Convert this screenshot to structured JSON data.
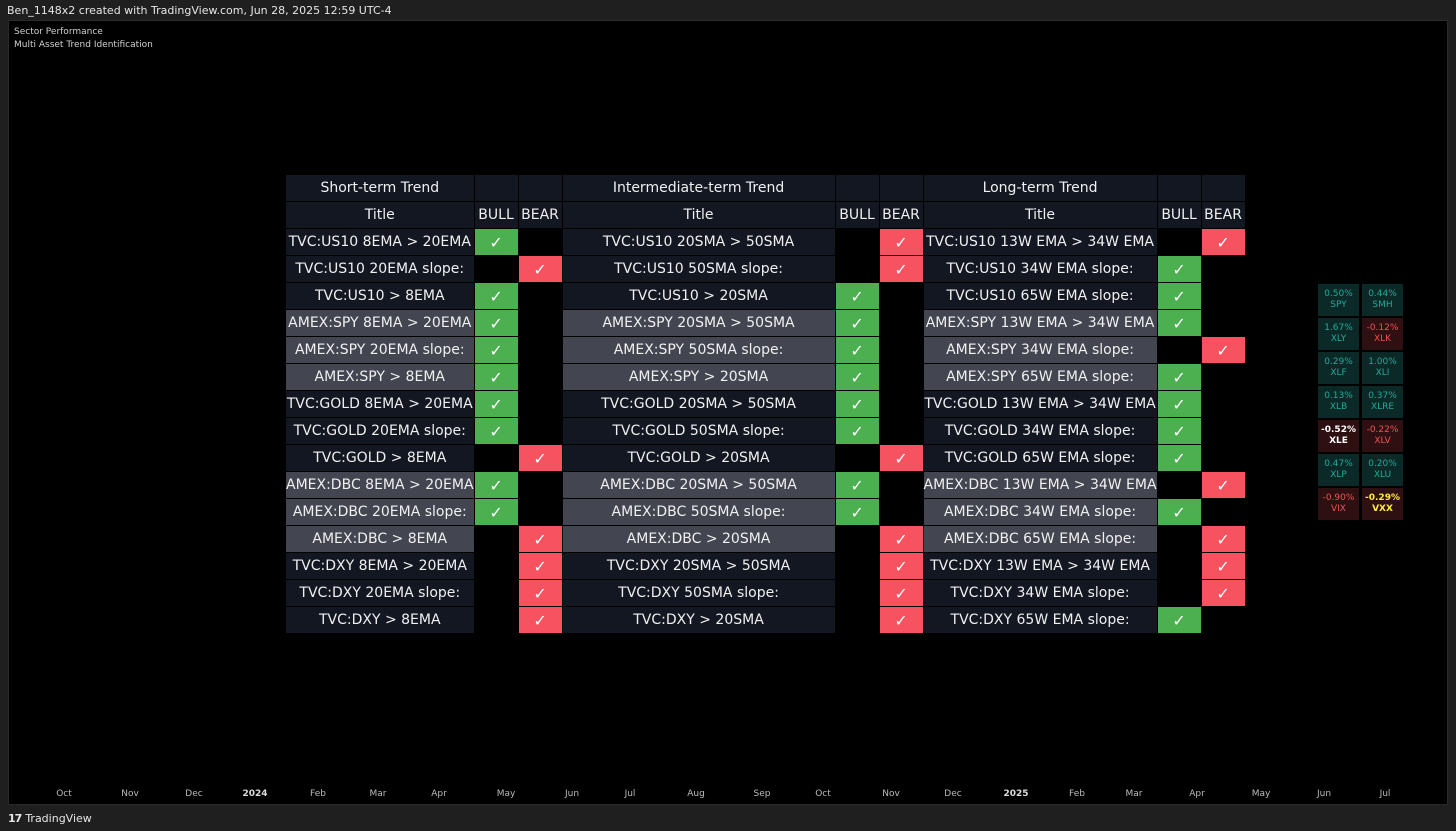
{
  "header": {
    "text": "Ben_1148x2 created with TradingView.com, Jun 28, 2025 12:59 UTC-4"
  },
  "indicators": [
    "Sector Performance",
    "Multi Asset Trend Identification"
  ],
  "table": {
    "sections": [
      "Short-term Trend",
      "Intermediate-term Trend",
      "Long-term Trend"
    ],
    "col_title": "Title",
    "col_bull": "BULL",
    "col_bear": "BEAR",
    "check": "✓",
    "rows": [
      {
        "a": "TVC:US10 8EMA > 20EMA",
        "b": "TVC:US10 20SMA > 50SMA",
        "c": "TVC:US10 13W EMA > 34W EMA",
        "s": [
          "bull",
          "bear",
          "bear"
        ],
        "alt": false
      },
      {
        "a": "TVC:US10 20EMA slope:",
        "b": "TVC:US10 50SMA slope:",
        "c": "TVC:US10 34W EMA slope:",
        "s": [
          "bear",
          "bear",
          "bull"
        ],
        "alt": false
      },
      {
        "a": "TVC:US10 > 8EMA",
        "b": "TVC:US10 > 20SMA",
        "c": "TVC:US10 65W EMA slope:",
        "s": [
          "bull",
          "bull",
          "bull"
        ],
        "alt": false
      },
      {
        "a": "AMEX:SPY 8EMA > 20EMA",
        "b": "AMEX:SPY 20SMA > 50SMA",
        "c": "AMEX:SPY 13W EMA > 34W EMA",
        "s": [
          "bull",
          "bull",
          "bull"
        ],
        "alt": true
      },
      {
        "a": "AMEX:SPY 20EMA slope:",
        "b": "AMEX:SPY 50SMA slope:",
        "c": "AMEX:SPY 34W EMA slope:",
        "s": [
          "bull",
          "bull",
          "bear"
        ],
        "alt": true
      },
      {
        "a": "AMEX:SPY > 8EMA",
        "b": "AMEX:SPY > 20SMA",
        "c": "AMEX:SPY 65W EMA slope:",
        "s": [
          "bull",
          "bull",
          "bull"
        ],
        "alt": true
      },
      {
        "a": "TVC:GOLD 8EMA > 20EMA",
        "b": "TVC:GOLD 20SMA > 50SMA",
        "c": "TVC:GOLD 13W EMA > 34W EMA",
        "s": [
          "bull",
          "bull",
          "bull"
        ],
        "alt": false
      },
      {
        "a": "TVC:GOLD 20EMA slope:",
        "b": "TVC:GOLD 50SMA slope:",
        "c": "TVC:GOLD 34W EMA slope:",
        "s": [
          "bull",
          "bull",
          "bull"
        ],
        "alt": false
      },
      {
        "a": "TVC:GOLD > 8EMA",
        "b": "TVC:GOLD > 20SMA",
        "c": "TVC:GOLD 65W EMA slope:",
        "s": [
          "bear",
          "bear",
          "bull"
        ],
        "alt": false
      },
      {
        "a": "AMEX:DBC 8EMA > 20EMA",
        "b": "AMEX:DBC 20SMA > 50SMA",
        "c": "AMEX:DBC 13W EMA > 34W EMA",
        "s": [
          "bull",
          "bull",
          "bear"
        ],
        "alt": true
      },
      {
        "a": "AMEX:DBC 20EMA slope:",
        "b": "AMEX:DBC 50SMA slope:",
        "c": "AMEX:DBC 34W EMA slope:",
        "s": [
          "bull",
          "bull",
          "bull"
        ],
        "alt": true
      },
      {
        "a": "AMEX:DBC > 8EMA",
        "b": "AMEX:DBC > 20SMA",
        "c": "AMEX:DBC 65W EMA slope:",
        "s": [
          "bear",
          "bear",
          "bear"
        ],
        "alt": true
      },
      {
        "a": "TVC:DXY 8EMA > 20EMA",
        "b": "TVC:DXY 20SMA > 50SMA",
        "c": "TVC:DXY 13W EMA > 34W EMA",
        "s": [
          "bear",
          "bear",
          "bear"
        ],
        "alt": false
      },
      {
        "a": "TVC:DXY 20EMA slope:",
        "b": "TVC:DXY 50SMA slope:",
        "c": "TVC:DXY 34W EMA slope:",
        "s": [
          "bear",
          "bear",
          "bear"
        ],
        "alt": false
      },
      {
        "a": "TVC:DXY > 8EMA",
        "b": "TVC:DXY > 20SMA",
        "c": "TVC:DXY 65W EMA slope:",
        "s": [
          "bear",
          "bear",
          "bull"
        ],
        "alt": false
      }
    ]
  },
  "sectors": [
    {
      "pct": "0.50%",
      "sym": "SPY",
      "tone": "pos"
    },
    {
      "pct": "0.44%",
      "sym": "SMH",
      "tone": "pos"
    },
    {
      "pct": "1.67%",
      "sym": "XLY",
      "tone": "pos"
    },
    {
      "pct": "-0.12%",
      "sym": "XLK",
      "tone": "neg"
    },
    {
      "pct": "0.29%",
      "sym": "XLF",
      "tone": "pos"
    },
    {
      "pct": "1.00%",
      "sym": "XLI",
      "tone": "pos"
    },
    {
      "pct": "0.13%",
      "sym": "XLB",
      "tone": "pos"
    },
    {
      "pct": "0.37%",
      "sym": "XLRE",
      "tone": "pos"
    },
    {
      "pct": "-0.52%",
      "sym": "XLE",
      "tone": "negw"
    },
    {
      "pct": "-0.22%",
      "sym": "XLV",
      "tone": "neg"
    },
    {
      "pct": "0.47%",
      "sym": "XLP",
      "tone": "pos"
    },
    {
      "pct": "0.20%",
      "sym": "XLU",
      "tone": "pos"
    },
    {
      "pct": "-0.90%",
      "sym": "VIX",
      "tone": "neg"
    },
    {
      "pct": "-0.29%",
      "sym": "VXX",
      "tone": "negy"
    }
  ],
  "xaxis": [
    "Oct",
    "Nov",
    "Dec",
    "2024",
    "Feb",
    "Mar",
    "Apr",
    "May",
    "Jun",
    "Jul",
    "Aug",
    "Sep",
    "Oct",
    "Nov",
    "Dec",
    "2025",
    "Feb",
    "Mar",
    "Apr",
    "May",
    "Jun",
    "Jul"
  ],
  "footer": {
    "brand": "TradingView",
    "mark": "17"
  },
  "colors": {
    "bull": "#4caf50",
    "bear": "#f7525f",
    "pos": "#26a69a",
    "neg": "#ef5350"
  }
}
